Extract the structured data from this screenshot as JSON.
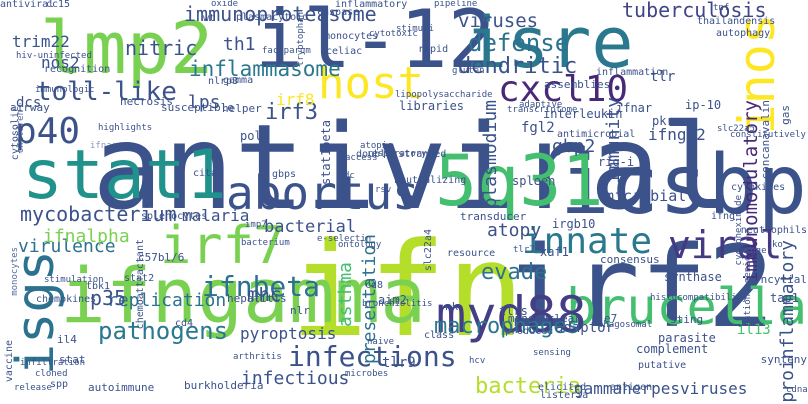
{
  "word_cloud": {
    "background": "#ffffff",
    "words": [
      {
        "text": "antiviral",
        "color": "#3b528b"
      },
      {
        "text": "ifn",
        "color": "#b5de2b"
      },
      {
        "text": "irf2",
        "color": "#3b528b"
      },
      {
        "text": "lmp2",
        "color": "#7ad151"
      },
      {
        "text": "il-12",
        "color": "#3b528b"
      },
      {
        "text": "isre",
        "color": "#2a788e"
      },
      {
        "text": "icsbp",
        "color": "#3b528b"
      },
      {
        "text": "stat1",
        "color": "#21918c"
      },
      {
        "text": "ifngamma",
        "color": "#7ad151"
      },
      {
        "text": "5q31",
        "color": "#44bf70"
      },
      {
        "text": "isgs",
        "color": "#2c728e"
      },
      {
        "text": "inos",
        "color": "#fde725"
      },
      {
        "text": "irf7",
        "color": "#7ad151"
      },
      {
        "text": "brucella",
        "color": "#44bf70"
      },
      {
        "text": "myd88",
        "color": "#433e85"
      },
      {
        "text": "cxcl10",
        "color": "#482878"
      },
      {
        "text": "host",
        "color": "#fde725"
      },
      {
        "text": "abortus",
        "color": "#3b528b"
      },
      {
        "text": "innate",
        "color": "#2a788e"
      },
      {
        "text": "viral",
        "color": "#443983"
      },
      {
        "text": "p40",
        "color": "#3b528b"
      },
      {
        "text": "ifnbeta",
        "color": "#2c728e"
      },
      {
        "text": "infections",
        "color": "#3b528b"
      },
      {
        "text": "macrophages",
        "color": "#2a788e"
      },
      {
        "text": "pathogens",
        "color": "#2a788e"
      },
      {
        "text": "immunoproteasome",
        "color": "#3b528b"
      },
      {
        "text": "defense",
        "color": "#2c728e"
      },
      {
        "text": "tuberculosis",
        "color": "#414487"
      },
      {
        "text": "dendritic",
        "color": "#3b528b"
      },
      {
        "text": "inflammasome",
        "color": "#2a788e"
      },
      {
        "text": "mycobacterium",
        "color": "#3b528b"
      },
      {
        "text": "malaria",
        "color": "#3b528b"
      },
      {
        "text": "bacterial",
        "color": "#3b528b"
      },
      {
        "text": "bacteria",
        "color": "#b5de2b"
      },
      {
        "text": "replication",
        "color": "#2c728e"
      },
      {
        "text": "virulence",
        "color": "#2c728e"
      },
      {
        "text": "toll-like",
        "color": "#3b528b"
      },
      {
        "text": "nitric",
        "color": "#3b528b"
      },
      {
        "text": "lps",
        "color": "#3b528b"
      },
      {
        "text": "th1",
        "color": "#3b528b"
      },
      {
        "text": "irf3",
        "color": "#3b528b"
      },
      {
        "text": "irf8",
        "color": "#fde725"
      },
      {
        "text": "p35",
        "color": "#3b528b"
      },
      {
        "text": "asthma",
        "color": "#44bf70"
      },
      {
        "text": "viruses",
        "color": "#3b528b"
      },
      {
        "text": "gbp2",
        "color": "#3b528b"
      },
      {
        "text": "evade",
        "color": "#2c728e"
      },
      {
        "text": "mhc",
        "color": "#3b528b"
      },
      {
        "text": "atopy",
        "color": "#3b528b"
      },
      {
        "text": "infectious",
        "color": "#3b528b"
      },
      {
        "text": "gammaherpesviruses",
        "color": "#3b528b"
      },
      {
        "text": "immunity",
        "color": "#3b528b"
      },
      {
        "text": "immunomodulatory",
        "color": "#482878"
      },
      {
        "text": "proinflammatory",
        "color": "#3b528b"
      },
      {
        "text": "microbial",
        "color": "#3b528b"
      },
      {
        "text": "ifnalpha",
        "color": "#7ad151"
      },
      {
        "text": "pyroptosis",
        "color": "#3b528b"
      },
      {
        "text": "tlr9",
        "color": "#3b528b"
      },
      {
        "text": "trim22",
        "color": "#3b528b"
      },
      {
        "text": "nos2",
        "color": "#3b528b"
      },
      {
        "text": "dcs",
        "color": "#3b528b"
      },
      {
        "text": "tlr",
        "color": "#3b528b"
      },
      {
        "text": "plasmodium",
        "color": "#3b528b"
      },
      {
        "text": "presentation",
        "color": "#2c728e"
      },
      {
        "text": "adaptor",
        "color": "#3b528b"
      },
      {
        "text": "complement",
        "color": "#3b528b"
      },
      {
        "text": "aim2",
        "color": "#3b528b"
      },
      {
        "text": "tlrs",
        "color": "#3b528b"
      },
      {
        "text": "nk",
        "color": "#3b528b"
      },
      {
        "text": "cd4",
        "color": "#3b528b"
      },
      {
        "text": "irgb10",
        "color": "#3b528b"
      },
      {
        "text": "xaf1",
        "color": "#3b528b"
      },
      {
        "text": "synthase",
        "color": "#3b528b"
      },
      {
        "text": "tap1",
        "color": "#3b528b"
      },
      {
        "text": "il13",
        "color": "#44bf70"
      },
      {
        "text": "sting",
        "color": "#3b528b"
      },
      {
        "text": "parasite",
        "color": "#3b528b"
      },
      {
        "text": "spleen",
        "color": "#3b528b"
      },
      {
        "text": "ifngr2",
        "color": "#3b528b"
      },
      {
        "text": "fgl2",
        "color": "#3b528b"
      },
      {
        "text": "rig-i",
        "color": "#3b528b"
      },
      {
        "text": "stat2",
        "color": "#3b528b"
      },
      {
        "text": "tbk1",
        "color": "#3b528b"
      },
      {
        "text": "c57bl/6",
        "color": "#3b528b"
      },
      {
        "text": "chemokines",
        "color": "#3b528b"
      },
      {
        "text": "hepatitis",
        "color": "#3b528b"
      },
      {
        "text": "nlr",
        "color": "#3b528b"
      },
      {
        "text": "class",
        "color": "#3b528b"
      },
      {
        "text": "stat",
        "color": "#3b528b"
      },
      {
        "text": "il4",
        "color": "#3b528b"
      },
      {
        "text": "cytokines",
        "color": "#3b528b"
      },
      {
        "text": "interleukin",
        "color": "#3b528b"
      },
      {
        "text": "ip-10",
        "color": "#3b528b"
      },
      {
        "text": "pkr",
        "color": "#3b528b"
      },
      {
        "text": "ifnar",
        "color": "#3b528b"
      },
      {
        "text": "transducer",
        "color": "#3b528b"
      },
      {
        "text": "resource",
        "color": "#3b528b"
      },
      {
        "text": "consensus",
        "color": "#3b528b"
      },
      {
        "text": "e7",
        "color": "#3b528b"
      },
      {
        "text": "mononuclear",
        "color": "#3b528b"
      },
      {
        "text": "histocompatibility",
        "color": "#3b528b"
      },
      {
        "text": "phagosomal",
        "color": "#3b528b"
      },
      {
        "text": "syncytial",
        "color": "#3b528b"
      },
      {
        "text": "synteny",
        "color": "#3b528b"
      },
      {
        "text": "putative",
        "color": "#3b528b"
      },
      {
        "text": "antigen",
        "color": "#3b528b"
      },
      {
        "text": "listeria",
        "color": "#3b528b"
      },
      {
        "text": "elicited",
        "color": "#3b528b"
      },
      {
        "text": "burkholderia",
        "color": "#3b528b"
      },
      {
        "text": "autoimmune",
        "color": "#3b528b"
      },
      {
        "text": "spp",
        "color": "#3b528b"
      },
      {
        "text": "vaccine",
        "color": "#3b528b"
      },
      {
        "text": "infiltration",
        "color": "#3b528b"
      },
      {
        "text": "release",
        "color": "#3b528b"
      },
      {
        "text": "cloned",
        "color": "#3b528b"
      },
      {
        "text": "stimulation",
        "color": "#3b528b"
      },
      {
        "text": "monocytes",
        "color": "#3b528b"
      },
      {
        "text": "chemoattractant",
        "color": "#3b528b"
      },
      {
        "text": "splenocytes",
        "color": "#3b528b"
      },
      {
        "text": "poly",
        "color": "#3b528b"
      },
      {
        "text": "helper",
        "color": "#3b528b"
      },
      {
        "text": "susceptible",
        "color": "#3b528b"
      },
      {
        "text": "necrosis",
        "color": "#3b528b"
      },
      {
        "text": "airway",
        "color": "#3b528b"
      },
      {
        "text": "recognition",
        "color": "#3b528b"
      },
      {
        "text": "cc15",
        "color": "#3b528b"
      },
      {
        "text": "caspase",
        "color": "#3b528b"
      },
      {
        "text": "monocytes",
        "color": "#3b528b"
      },
      {
        "text": "inflammatory",
        "color": "#3b528b"
      },
      {
        "text": "plasmacytoid",
        "color": "#3b528b"
      },
      {
        "text": "celiac",
        "color": "#3b528b"
      },
      {
        "text": "gamma",
        "color": "#3b528b"
      },
      {
        "text": "nlrp3",
        "color": "#3b528b"
      },
      {
        "text": "lipopolysaccharide",
        "color": "#3b528b"
      },
      {
        "text": "transcriptome",
        "color": "#3b528b"
      },
      {
        "text": "inflammation",
        "color": "#3b528b"
      },
      {
        "text": "thailandensis",
        "color": "#3b528b"
      },
      {
        "text": "tnf",
        "color": "#3b528b"
      },
      {
        "text": "autophagy",
        "color": "#3b528b"
      },
      {
        "text": "adaptive",
        "color": "#3b528b"
      },
      {
        "text": "gluten",
        "color": "#3b528b"
      },
      {
        "text": "rapid",
        "color": "#3b528b"
      },
      {
        "text": "pipeline",
        "color": "#3b528b"
      },
      {
        "text": "gas",
        "color": "#3b528b"
      },
      {
        "text": "concanavalin",
        "color": "#3b528b"
      },
      {
        "text": "antimicrobial",
        "color": "#3b528b"
      },
      {
        "text": "neutralizing",
        "color": "#3b528b"
      },
      {
        "text": "imp7",
        "color": "#3b528b"
      },
      {
        "text": "bacterium",
        "color": "#3b528b"
      },
      {
        "text": "ontology",
        "color": "#3b528b"
      },
      {
        "text": "e-selectin",
        "color": "#3b528b"
      },
      {
        "text": "bronchiolitis",
        "color": "#3b528b"
      },
      {
        "text": "cd8",
        "color": "#3b528b"
      },
      {
        "text": "naive",
        "color": "#3b528b"
      },
      {
        "text": "microbes",
        "color": "#3b528b"
      },
      {
        "text": "arthritis",
        "color": "#3b528b"
      },
      {
        "text": "libraries",
        "color": "#3b528b"
      },
      {
        "text": "double-stranded",
        "color": "#3b528b"
      },
      {
        "text": "dc",
        "color": "#3b528b"
      },
      {
        "text": "rsv",
        "color": "#3b528b"
      },
      {
        "text": "respiratory",
        "color": "#3b528b"
      },
      {
        "text": "access",
        "color": "#3b528b"
      },
      {
        "text": "atopic",
        "color": "#3b528b"
      },
      {
        "text": "stat1beta",
        "color": "#3b528b"
      },
      {
        "text": "gbps",
        "color": "#3b528b"
      },
      {
        "text": "cita",
        "color": "#3b528b"
      },
      {
        "text": "tlr7",
        "color": "#3b528b"
      },
      {
        "text": "trigger",
        "color": "#3b528b"
      },
      {
        "text": "neutrophils",
        "color": "#3b528b"
      },
      {
        "text": "ko",
        "color": "#3b528b"
      },
      {
        "text": "ifng",
        "color": "#3b528b"
      },
      {
        "text": "cdna",
        "color": "#3b528b"
      },
      {
        "text": "hcv",
        "color": "#3b528b"
      },
      {
        "text": "produced",
        "color": "#3b528b"
      },
      {
        "text": "sensing",
        "color": "#3b528b"
      },
      {
        "text": "wt",
        "color": "#3b528b"
      },
      {
        "text": "oxide",
        "color": "#3b528b"
      },
      {
        "text": "faciparum",
        "color": "#3b528b"
      },
      {
        "text": "tryptophan",
        "color": "#3b528b"
      },
      {
        "text": "cytotoxic",
        "color": "#3b528b"
      },
      {
        "text": "stimuli",
        "color": "#3b528b"
      },
      {
        "text": "cytosolic",
        "color": "#3b528b"
      },
      {
        "text": "hiv-uninfected",
        "color": "#3b528b"
      },
      {
        "text": "immunologic",
        "color": "#3b528b"
      },
      {
        "text": "highlights",
        "color": "#3b528b"
      },
      {
        "text": "children",
        "color": "#3b528b"
      },
      {
        "text": "constitutively",
        "color": "#3b528b"
      },
      {
        "text": "slc22a5",
        "color": "#3b528b"
      },
      {
        "text": "slc22a4",
        "color": "#3b528b"
      },
      {
        "text": "antioncogenic",
        "color": "#3b528b"
      },
      {
        "text": "cycloheximide",
        "color": "#3b528b"
      },
      {
        "text": "assemblies",
        "color": "#3b528b"
      },
      {
        "text": "ifnar",
        "color": "#3b528b"
      },
      {
        "text": "antiviral",
        "color": "#3b528b"
      }
    ]
  }
}
